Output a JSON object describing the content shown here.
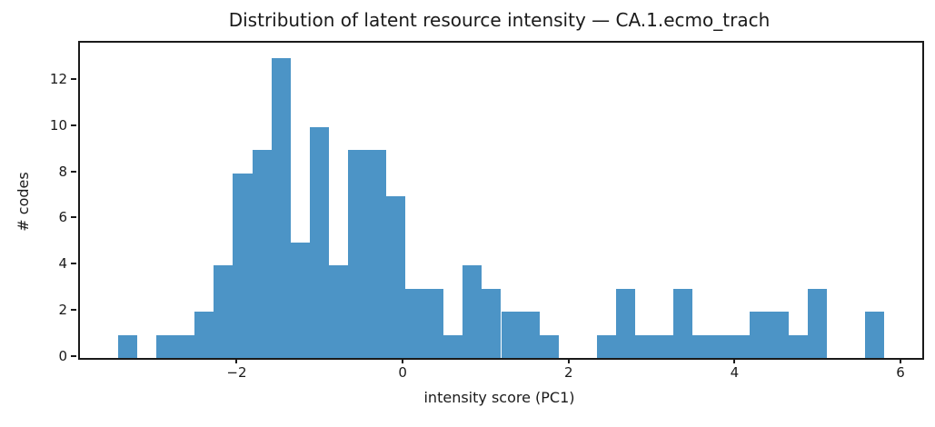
{
  "figure": {
    "background": "#ffffff"
  },
  "chart_data": {
    "type": "bar",
    "subtype": "histogram",
    "title": "Distribution of latent resource intensity — CA.1.ecmo_trach",
    "xlabel": "intensity score (PC1)",
    "ylabel": "# codes",
    "xlim": [
      -3.91,
      6.24
    ],
    "ylim": [
      0,
      13.65
    ],
    "grid": false,
    "legend": "none",
    "colors": {
      "bar": "#4c94c6",
      "axis": "#1a1a1a",
      "text": "#1a1a1a"
    },
    "xticks": [
      {
        "value": -2,
        "label": "−2"
      },
      {
        "value": 0,
        "label": "0"
      },
      {
        "value": 2,
        "label": "2"
      },
      {
        "value": 4,
        "label": "4"
      },
      {
        "value": 6,
        "label": "6"
      }
    ],
    "yticks": [
      {
        "value": 0,
        "label": "0"
      },
      {
        "value": 2,
        "label": "2"
      },
      {
        "value": 4,
        "label": "4"
      },
      {
        "value": 6,
        "label": "6"
      },
      {
        "value": 8,
        "label": "8"
      },
      {
        "value": 10,
        "label": "10"
      },
      {
        "value": 12,
        "label": "12"
      }
    ],
    "bins": {
      "edges": [
        -3.45,
        -3.219,
        -2.989,
        -2.758,
        -2.527,
        -2.296,
        -2.066,
        -1.835,
        -1.604,
        -1.373,
        -1.143,
        -0.912,
        -0.681,
        -0.45,
        -0.22,
        0.011,
        0.242,
        0.473,
        0.703,
        0.934,
        1.165,
        1.396,
        1.627,
        1.857,
        2.088,
        2.319,
        2.55,
        2.78,
        3.011,
        3.242,
        3.473,
        3.703,
        3.934,
        4.165,
        4.396,
        4.626,
        4.857,
        5.088,
        5.319,
        5.549,
        5.78
      ],
      "counts": [
        1,
        0,
        1,
        1,
        2,
        4,
        8,
        9,
        13,
        5,
        10,
        4,
        9,
        9,
        7,
        3,
        3,
        1,
        4,
        3,
        2,
        2,
        1,
        0,
        0,
        1,
        3,
        1,
        1,
        3,
        1,
        1,
        1,
        2,
        2,
        1,
        3,
        0,
        0,
        2
      ]
    }
  }
}
